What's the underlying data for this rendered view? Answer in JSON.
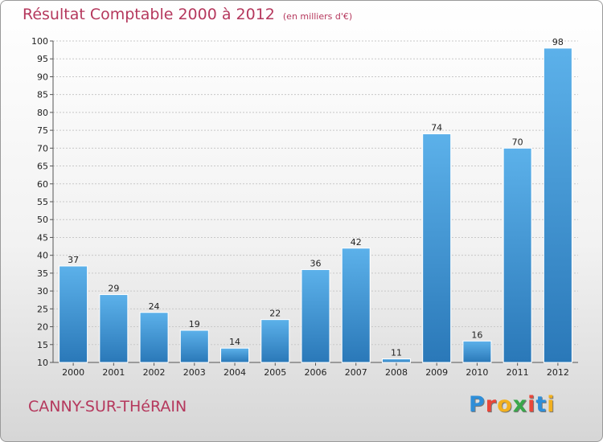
{
  "chart_data": {
    "type": "bar",
    "title": "Résultat Comptable 2000 à 2012",
    "subtitle": "(en milliers d'€)",
    "categories": [
      "2000",
      "2001",
      "2002",
      "2003",
      "2004",
      "2005",
      "2006",
      "2007",
      "2008",
      "2009",
      "2010",
      "2011",
      "2012"
    ],
    "values": [
      37,
      29,
      24,
      19,
      14,
      22,
      36,
      42,
      11,
      74,
      16,
      70,
      98
    ],
    "ylim": [
      10,
      100
    ],
    "yticks": [
      10,
      15,
      20,
      25,
      30,
      35,
      40,
      45,
      50,
      55,
      60,
      65,
      70,
      75,
      80,
      85,
      90,
      95,
      100
    ],
    "grid": true,
    "bar_color": "#3f96d6",
    "xlabel": "",
    "ylabel": ""
  },
  "location": "CANNY-SUR-THéRAIN",
  "logo": {
    "letters": [
      "P",
      "r",
      "o",
      "x",
      "i",
      "t",
      "i"
    ],
    "colors": [
      "#2e8ed8",
      "#e8463a",
      "#f2b01e",
      "#3aa74b",
      "#e8463a",
      "#2e8ed8",
      "#f2b01e"
    ]
  },
  "colors": {
    "accent": "#b5385d"
  }
}
